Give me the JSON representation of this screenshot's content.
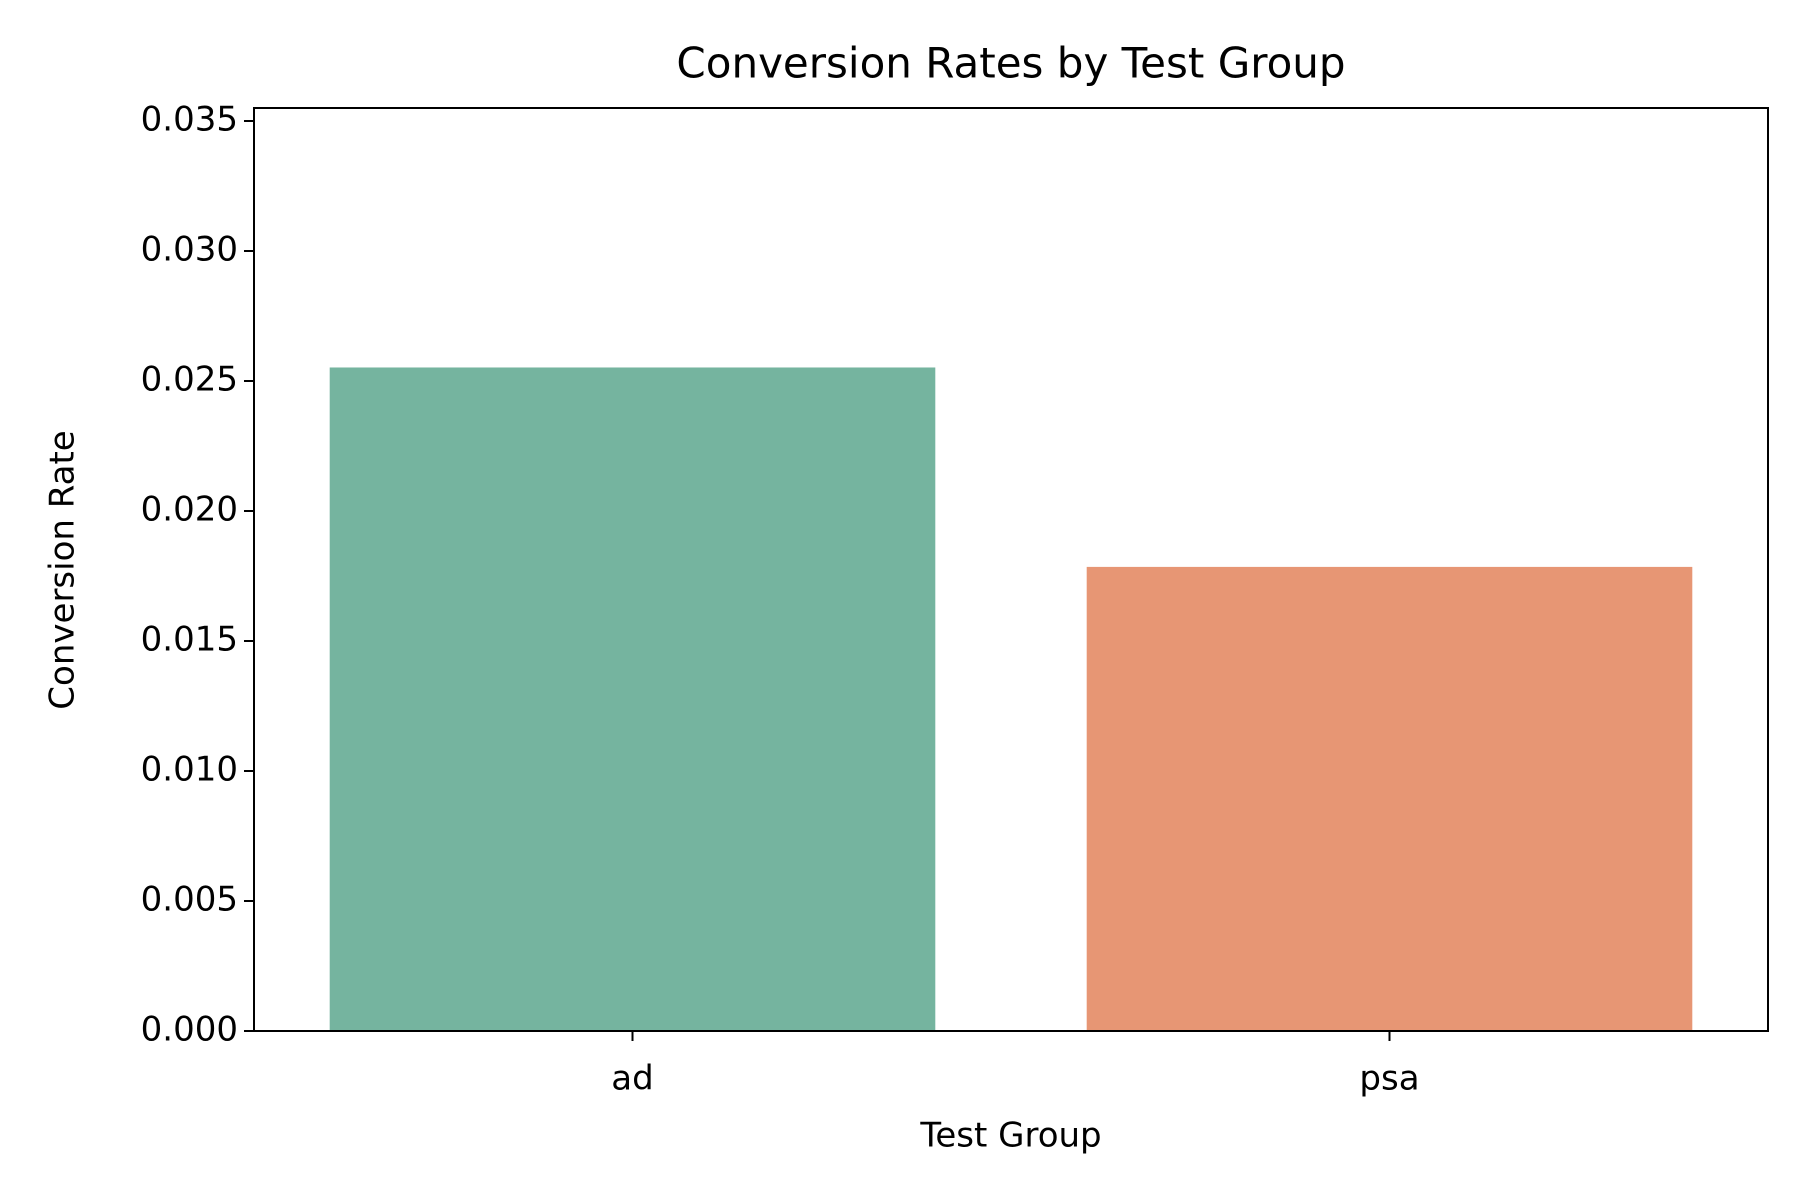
{
  "chart_data": {
    "type": "bar",
    "title": "Conversion Rates by Test Group",
    "x_label": "Test Group",
    "y_label": "Conversion Rate",
    "categories": [
      "ad",
      "psa"
    ],
    "values": [
      0.02552,
      0.01785
    ],
    "colors": [
      "#75b49f",
      "#e79674"
    ],
    "ylim": [
      0,
      0.0355
    ],
    "yticks": [
      {
        "value": 0,
        "label": "0.000"
      },
      {
        "value": 0.005,
        "label": "0.005"
      },
      {
        "value": 0.01,
        "label": "0.010"
      },
      {
        "value": 0.015,
        "label": "0.015"
      },
      {
        "value": 0.02,
        "label": "0.020"
      },
      {
        "value": 0.025,
        "label": "0.025"
      },
      {
        "value": 0.03,
        "label": "0.030"
      },
      {
        "value": 0.035,
        "label": "0.035"
      }
    ],
    "grid": false
  }
}
